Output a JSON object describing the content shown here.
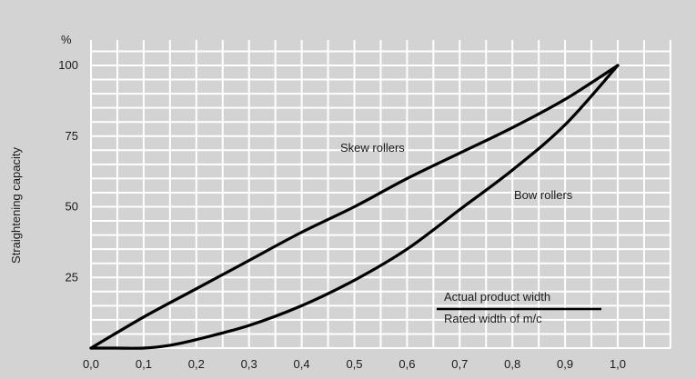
{
  "chart_data": {
    "type": "line",
    "title": "",
    "xlabel": "",
    "ylabel": "Straightening capacity",
    "y_unit": "%",
    "xlim": [
      0.0,
      1.0
    ],
    "ylim": [
      0,
      100
    ],
    "x_ticks": [
      0.0,
      0.1,
      0.2,
      0.3,
      0.4,
      0.5,
      0.6,
      0.7,
      0.8,
      0.9,
      1.0
    ],
    "x_tick_labels": [
      "0,0",
      "0,1",
      "0,2",
      "0,3",
      "0,4",
      "0,5",
      "0,6",
      "0,7",
      "0,8",
      "0,9",
      "1,0"
    ],
    "y_tick_labels": [
      {
        "value": 25,
        "label": "25"
      },
      {
        "value": 50,
        "label": "50"
      },
      {
        "value": 75,
        "label": "75"
      },
      {
        "value": 100,
        "label": "100"
      }
    ],
    "grid": true,
    "series": [
      {
        "name": "Skew rollers",
        "color": "#000000",
        "x": [
          0.0,
          0.1,
          0.2,
          0.3,
          0.4,
          0.5,
          0.6,
          0.7,
          0.8,
          0.9,
          1.0
        ],
        "y": [
          0,
          11,
          21,
          31,
          41,
          50,
          60,
          69,
          78,
          88,
          100
        ]
      },
      {
        "name": "Bow rollers",
        "color": "#000000",
        "x": [
          0.0,
          0.05,
          0.1,
          0.15,
          0.2,
          0.3,
          0.4,
          0.5,
          0.6,
          0.7,
          0.8,
          0.9,
          1.0
        ],
        "y": [
          0,
          0,
          0,
          1,
          3,
          8,
          15,
          24,
          35,
          49,
          63,
          79,
          100
        ]
      }
    ],
    "annotation": {
      "numerator": "Actual product width",
      "denominator": "Rated width of m/c"
    }
  }
}
